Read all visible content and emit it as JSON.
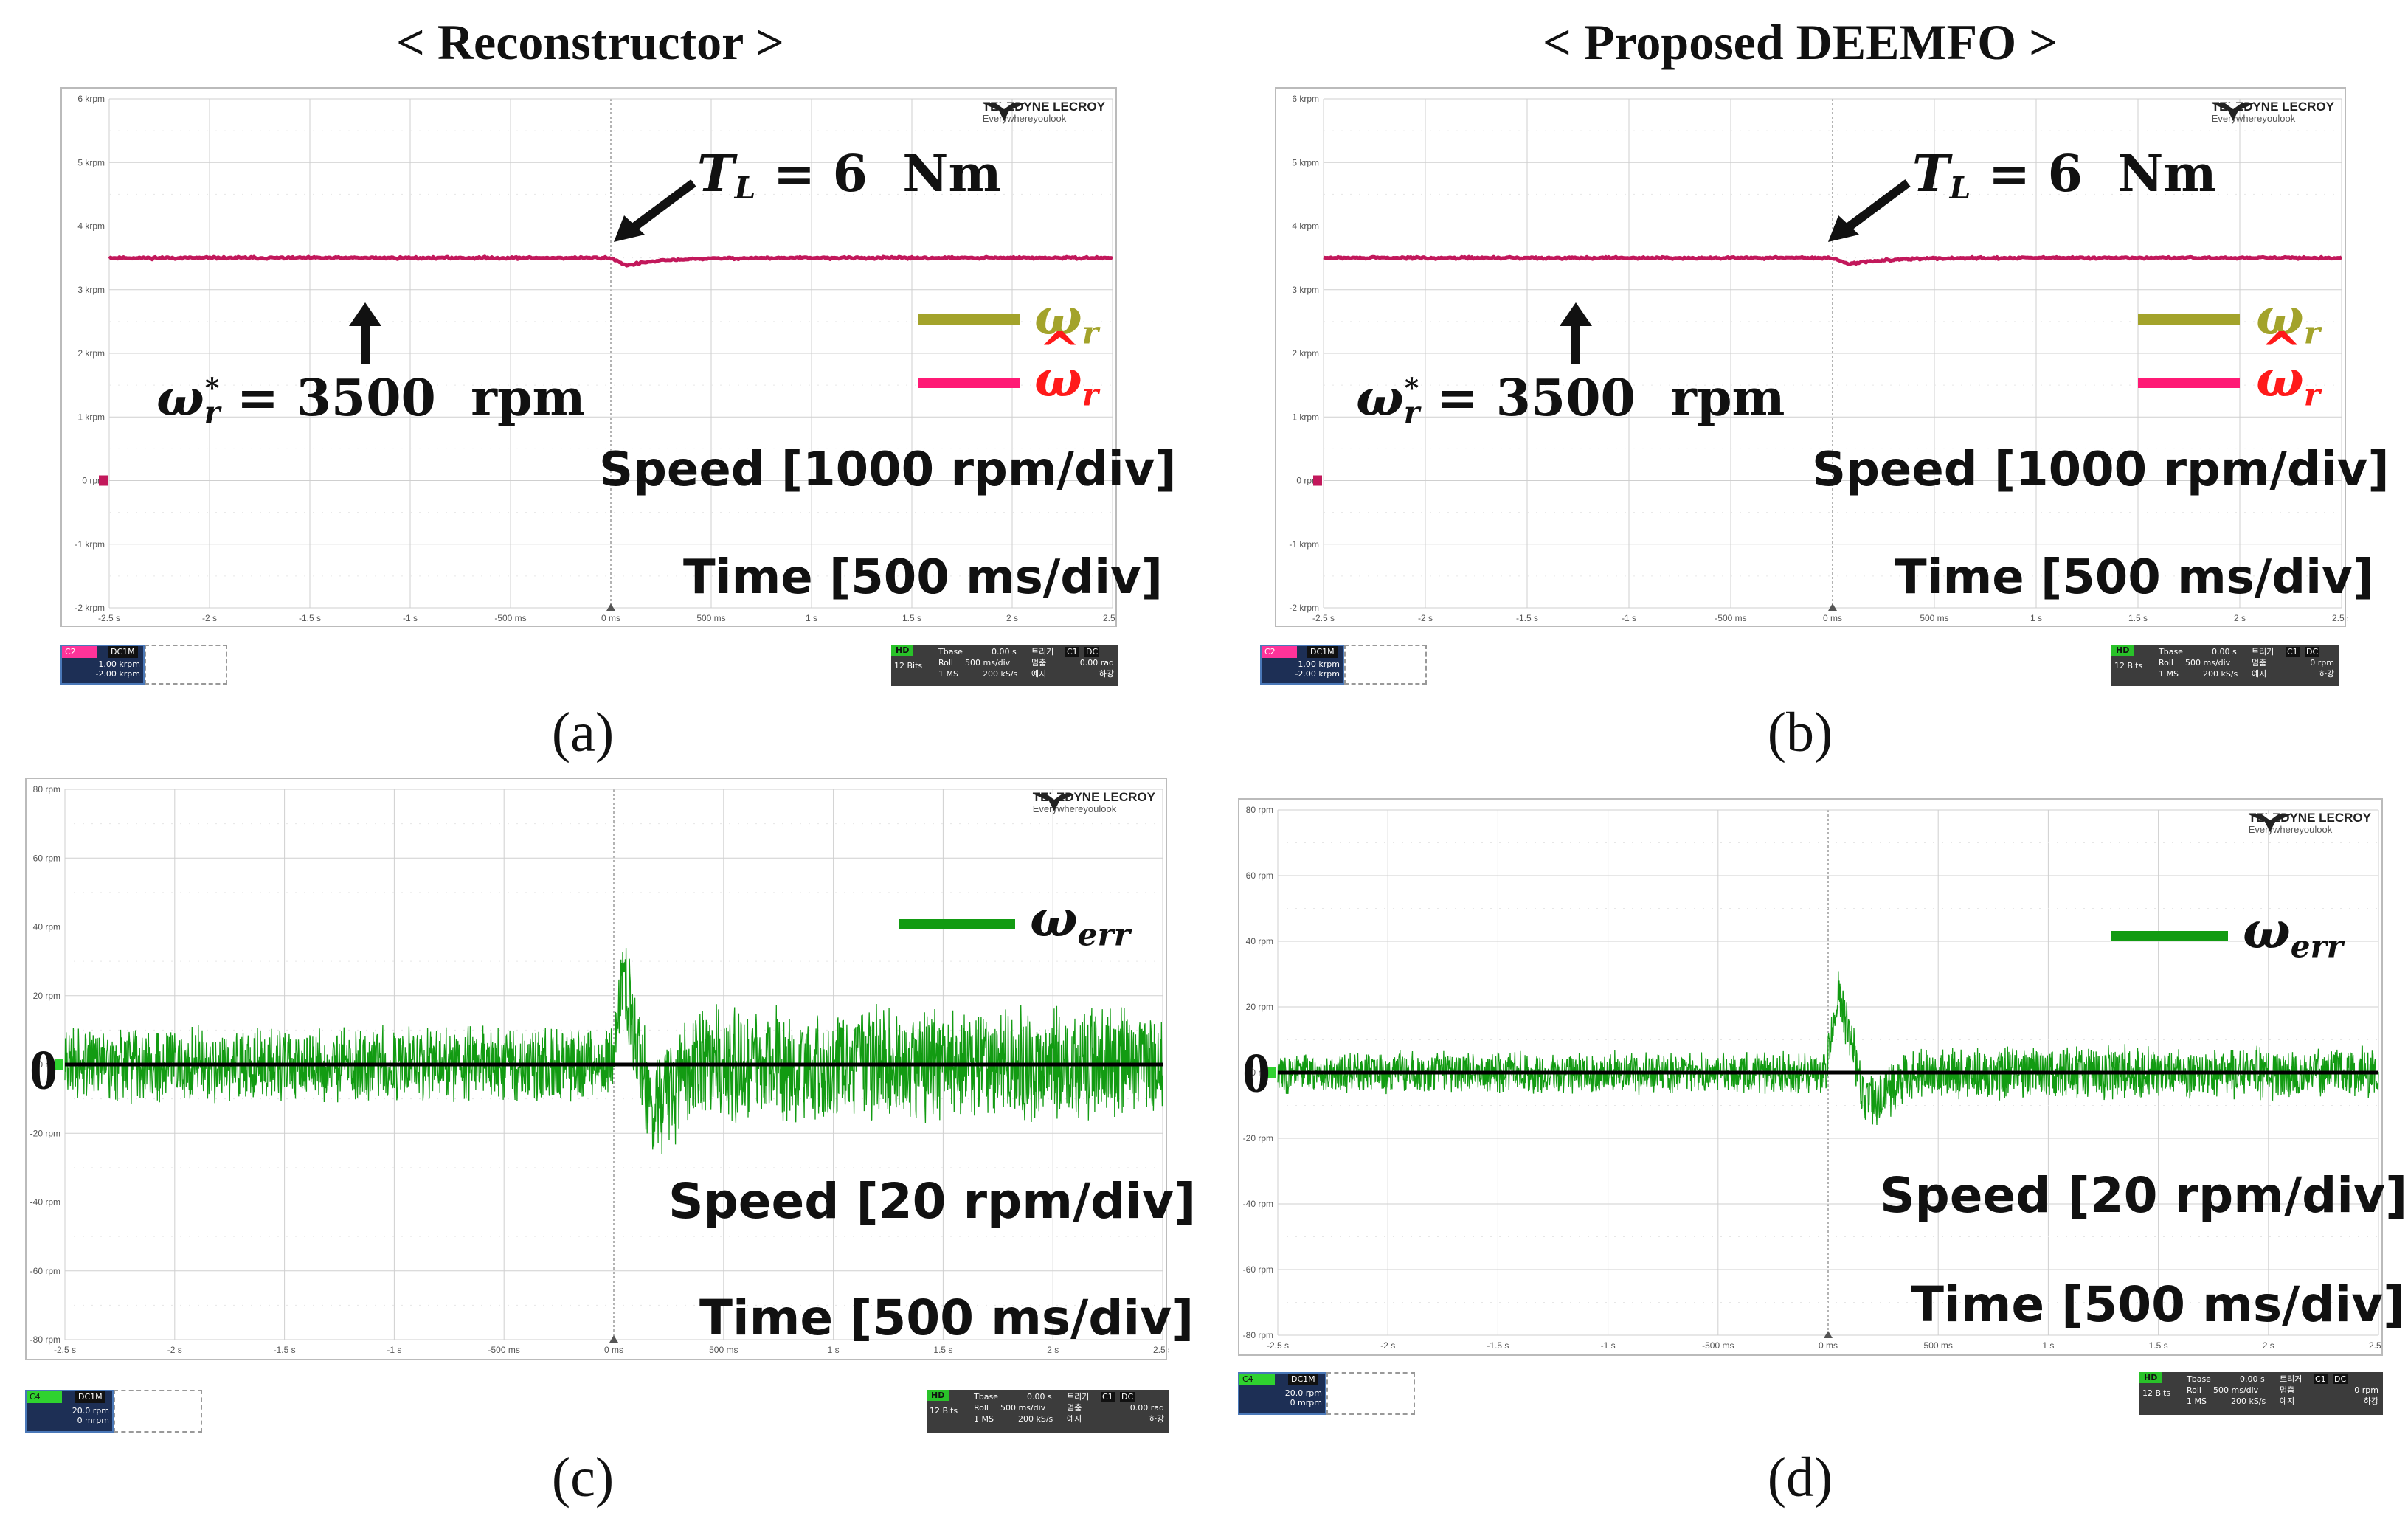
{
  "titles": {
    "left": "< Reconstructor >",
    "right": "< Proposed DEEMFO >"
  },
  "captions": [
    "(a)",
    "(b)",
    "(c)",
    "(d)"
  ],
  "colors": {
    "speed_trace": "#c2185b",
    "actual_legend": "#a3a32b",
    "estimated_legend": "#ff1a75",
    "err_trace": "#129b12",
    "zero_line": "#000000",
    "grid": "#cfcfcf",
    "chan_tag_speed": "#ff3399",
    "chan_tag_err": "#2fd22f",
    "hd_badge": "#29c229"
  },
  "common": {
    "brand_name": "TELEDYNE LECROY",
    "brand_tagline": "Everywhereyoulook",
    "brand_icon": "teledyne-logo-icon",
    "time_text": "Time [500 ms/div]",
    "x_ticks": [
      "-2.5 s",
      "-2 s",
      "-1.5 s",
      "-1 s",
      "-500 ms",
      "0 ms",
      "500 ms",
      "1 s",
      "1.5 s",
      "2 s",
      "2.5 s"
    ],
    "timebase": {
      "hd": "HD",
      "bits": "12 Bits",
      "tbase_label": "Tbase",
      "tbase_value": "0.00 s",
      "roll": "Roll",
      "ms_div": "500 ms/div",
      "ms": "1 MS",
      "ks": "200 kS/s",
      "trig_label": "트리거",
      "c1": "C1",
      "dc": "DC",
      "stop": "멈춤",
      "stop2": "예지",
      "level_speed": "0.00 rad",
      "level_err": "0.00 rad",
      "level_err_d": "0 rpm",
      "slope": "하강"
    }
  },
  "speed_panels": {
    "y_ticks": [
      "6 krpm",
      "5 krpm",
      "4 krpm",
      "3 krpm",
      "2 krpm",
      "1 krpm",
      "0 rpm",
      "-1 krpm",
      "-2 krpm"
    ],
    "speed_text": "Speed [1000 rpm/div]",
    "tl_label": "T_L = 6  Nm",
    "ref_label": "ω*r = 3500  rpm",
    "legend_actual": "ωr",
    "legend_est": "ω̂r",
    "channel": {
      "tag": "C2",
      "type": "DC1M",
      "scale": "1.00 krpm",
      "offset": "-2.00 krpm"
    }
  },
  "err_panels": {
    "y_ticks": [
      "80 rpm",
      "60 rpm",
      "40 rpm",
      "20 rpm",
      "0 rpm",
      "-20 rpm",
      "-40 rpm",
      "-60 rpm",
      "-80 rpm"
    ],
    "speed_text": "Speed [20 rpm/div]",
    "zero_label": "0",
    "legend_err": "ωerr",
    "channel": {
      "tag": "C4",
      "type": "DC1M",
      "scale": "20.0 rpm",
      "offset": "0 mrpm"
    }
  },
  "chart_data": [
    {
      "panel": "(a)",
      "type": "line",
      "title": "< Reconstructor >",
      "xlabel": "Time [500 ms/div]",
      "ylabel": "Speed [1000 rpm/div]",
      "xlim": [
        -2.5,
        2.5
      ],
      "ylim": [
        -2000,
        6000
      ],
      "series": [
        {
          "name": "ω̂r",
          "baseline": 3500,
          "load_step_time": 0.0,
          "dip_min": 3380,
          "dip_time": 0.08,
          "recovery_time": 0.6,
          "noise_amplitude": 15
        }
      ],
      "annotations": [
        "T_L = 6 Nm",
        "ω*r = 3500 rpm"
      ]
    },
    {
      "panel": "(b)",
      "type": "line",
      "title": "< Proposed DEEMFO >",
      "xlabel": "Time [500 ms/div]",
      "ylabel": "Speed [1000 rpm/div]",
      "xlim": [
        -2.5,
        2.5
      ],
      "ylim": [
        -2000,
        6000
      ],
      "series": [
        {
          "name": "ω̂r",
          "baseline": 3500,
          "load_step_time": 0.0,
          "dip_min": 3400,
          "dip_time": 0.08,
          "recovery_time": 0.6,
          "noise_amplitude": 15
        }
      ],
      "annotations": [
        "T_L = 6 Nm",
        "ω*r = 3500 rpm"
      ]
    },
    {
      "panel": "(c)",
      "type": "line",
      "xlabel": "Time [500 ms/div]",
      "ylabel": "Speed [20 rpm/div]",
      "xlim": [
        -2.5,
        2.5
      ],
      "ylim": [
        -80,
        80
      ],
      "series": [
        {
          "name": "ωerr",
          "mean": 0,
          "noise_amplitude_before": 12,
          "noise_amplitude_after": 18,
          "spike_time": 0.05,
          "spike_peak": 27,
          "post_spike_undershoot": -12
        }
      ]
    },
    {
      "panel": "(d)",
      "type": "line",
      "xlabel": "Time [500 ms/div]",
      "ylabel": "Speed [20 rpm/div]",
      "xlim": [
        -2.5,
        2.5
      ],
      "ylim": [
        -80,
        80
      ],
      "series": [
        {
          "name": "ωerr",
          "mean": 0,
          "noise_amplitude_before": 7,
          "noise_amplitude_after": 9,
          "spike_time": 0.05,
          "spike_peak": 27,
          "post_spike_undershoot": -10
        }
      ]
    }
  ]
}
